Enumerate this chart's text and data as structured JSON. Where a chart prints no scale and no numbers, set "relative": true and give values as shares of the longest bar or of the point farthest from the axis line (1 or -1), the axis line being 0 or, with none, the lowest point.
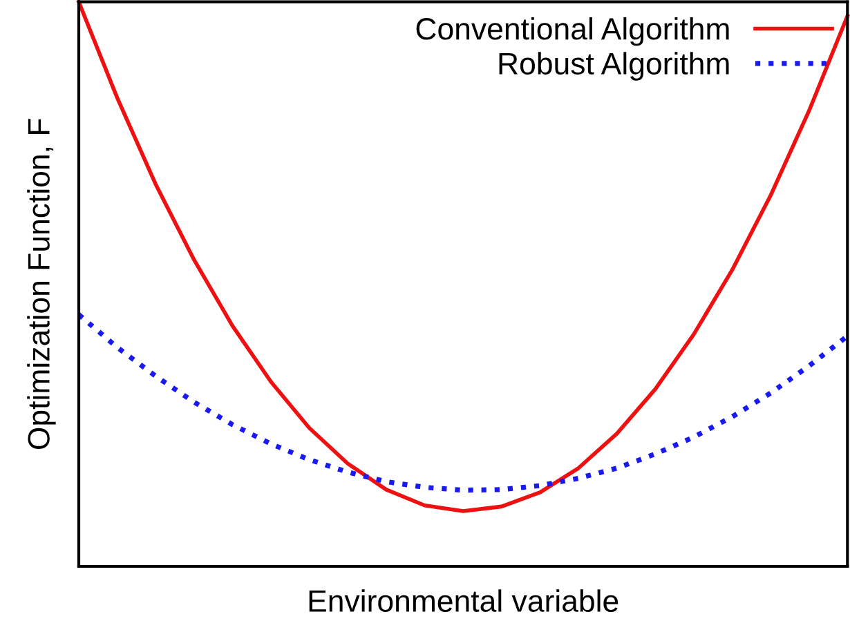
{
  "chart_data": {
    "type": "line",
    "xlabel": "Environmental variable",
    "ylabel": "Optimization Function, F",
    "relative": true,
    "legend": "top right",
    "marker": "none",
    "categories": [
      null,
      null,
      null,
      null,
      null,
      null,
      null,
      null,
      null,
      null,
      null,
      null,
      null,
      null,
      null,
      null,
      null,
      null,
      null,
      null,
      null
    ],
    "series": [
      {
        "name": "Conventional Algorithm",
        "color": "#ee1111",
        "line_style": "solid",
        "values": [
          1.0,
          0.83,
          0.677,
          0.543,
          0.426,
          0.327,
          0.245,
          0.182,
          0.136,
          0.108,
          0.098,
          0.106,
          0.131,
          0.174,
          0.235,
          0.314,
          0.411,
          0.525,
          0.657,
          0.807,
          0.975
        ]
      },
      {
        "name": "Robust Algorithm",
        "color": "#1a1aee",
        "line_style": "dotted",
        "values": [
          0.446,
          0.388,
          0.337,
          0.291,
          0.251,
          0.217,
          0.189,
          0.167,
          0.15,
          0.14,
          0.135,
          0.136,
          0.143,
          0.156,
          0.174,
          0.199,
          0.229,
          0.265,
          0.307,
          0.355,
          0.408
        ]
      }
    ]
  }
}
